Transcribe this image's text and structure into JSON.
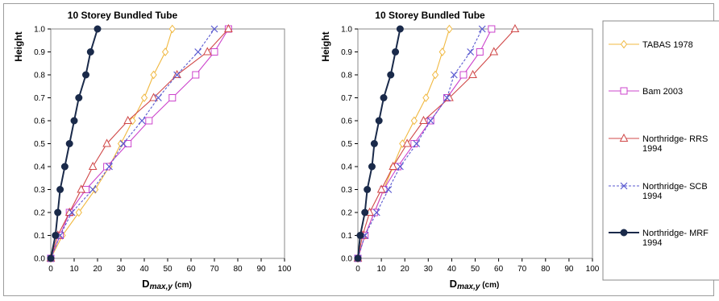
{
  "chart_data": [
    {
      "type": "line",
      "title": "10 Storey Bundled  Tube",
      "ylabel": "Height",
      "xlabel": {
        "main": "D",
        "sub": "max,y",
        "unit": " (cm)"
      },
      "xlim": [
        0,
        100
      ],
      "ylim": [
        0,
        1.0
      ],
      "xticks": [
        0,
        10,
        20,
        30,
        40,
        50,
        60,
        70,
        80,
        90,
        100
      ],
      "yticks": [
        0.0,
        0.1,
        0.2,
        0.3,
        0.4,
        0.5,
        0.6,
        0.7,
        0.8,
        0.9,
        1.0
      ],
      "ytick_labels": [
        "0.0",
        "0.1",
        "0.2",
        "0.3",
        "0.4",
        "0.5",
        "0.6",
        "0.7",
        "0.8",
        "0.9",
        "1.0"
      ],
      "grid": false,
      "series": [
        {
          "key": "tabas",
          "y": [
            0.0,
            0.1,
            0.2,
            0.3,
            0.4,
            0.5,
            0.6,
            0.7,
            0.8,
            0.9,
            1.0
          ],
          "x": [
            0,
            5,
            12,
            19,
            25,
            30,
            35,
            40,
            44,
            49,
            52
          ]
        },
        {
          "key": "bam",
          "y": [
            0.0,
            0.1,
            0.2,
            0.3,
            0.4,
            0.5,
            0.6,
            0.7,
            0.8,
            0.9,
            1.0
          ],
          "x": [
            0,
            4,
            8,
            15,
            24,
            33,
            42,
            52,
            62,
            70,
            76
          ]
        },
        {
          "key": "rrs",
          "y": [
            0.0,
            0.1,
            0.2,
            0.3,
            0.4,
            0.5,
            0.6,
            0.7,
            0.8,
            0.9,
            1.0
          ],
          "x": [
            0,
            3,
            8,
            13,
            18,
            24,
            33,
            44,
            54,
            67,
            76
          ]
        },
        {
          "key": "scbf",
          "y": [
            0.0,
            0.1,
            0.2,
            0.3,
            0.4,
            0.5,
            0.6,
            0.7,
            0.8,
            0.9,
            1.0
          ],
          "x": [
            0,
            4,
            9,
            18,
            25,
            31,
            39,
            46,
            54,
            63,
            70
          ]
        },
        {
          "key": "mrf",
          "y": [
            0.0,
            0.1,
            0.2,
            0.3,
            0.4,
            0.5,
            0.6,
            0.7,
            0.8,
            0.9,
            1.0
          ],
          "x": [
            0,
            2,
            3,
            4,
            6,
            8,
            10,
            12,
            15,
            17,
            20
          ]
        }
      ]
    },
    {
      "type": "line",
      "title": "10 Storey Bundled  Tube",
      "ylabel": "Height",
      "xlabel": {
        "main": "D",
        "sub": "max,y",
        "unit": " (cm)"
      },
      "xlim": [
        0,
        100
      ],
      "ylim": [
        0,
        1.0
      ],
      "xticks": [
        0,
        10,
        20,
        30,
        40,
        50,
        60,
        70,
        80,
        90,
        100
      ],
      "yticks": [
        0.0,
        0.1,
        0.2,
        0.3,
        0.4,
        0.5,
        0.6,
        0.7,
        0.8,
        0.9,
        1.0
      ],
      "ytick_labels": [
        "0.0",
        "0.1",
        "0.2",
        "0.3",
        "0.4",
        "0.5",
        "0.6",
        "0.7",
        "0.8",
        "0.9",
        "1.0"
      ],
      "grid": false,
      "series": [
        {
          "key": "tabas",
          "y": [
            0.0,
            0.1,
            0.2,
            0.3,
            0.4,
            0.5,
            0.6,
            0.7,
            0.8,
            0.9,
            1.0
          ],
          "x": [
            0,
            3,
            7,
            11,
            15,
            19,
            24,
            29,
            33,
            36,
            39
          ]
        },
        {
          "key": "bam",
          "y": [
            0.0,
            0.1,
            0.2,
            0.3,
            0.4,
            0.5,
            0.6,
            0.7,
            0.8,
            0.9,
            1.0
          ],
          "x": [
            0,
            3,
            7,
            11,
            17,
            24,
            31,
            38,
            45,
            52,
            57
          ]
        },
        {
          "key": "rrs",
          "y": [
            0.0,
            0.1,
            0.2,
            0.3,
            0.4,
            0.5,
            0.6,
            0.7,
            0.8,
            0.9,
            1.0
          ],
          "x": [
            0,
            2,
            5,
            10,
            15,
            21,
            28,
            39,
            49,
            58,
            67
          ]
        },
        {
          "key": "scbf",
          "y": [
            0.0,
            0.1,
            0.2,
            0.3,
            0.4,
            0.5,
            0.6,
            0.7,
            0.8,
            0.9,
            1.0
          ],
          "x": [
            0,
            3,
            8,
            13,
            18,
            25,
            31,
            38,
            41,
            48,
            53
          ]
        },
        {
          "key": "mrf",
          "y": [
            0.0,
            0.1,
            0.2,
            0.3,
            0.4,
            0.5,
            0.6,
            0.7,
            0.8,
            0.9,
            1.0
          ],
          "x": [
            0,
            1,
            3,
            4,
            6,
            7,
            9,
            11,
            14,
            16,
            18
          ]
        }
      ]
    }
  ],
  "legend": {
    "placement": "right",
    "items": [
      {
        "key": "tabas",
        "lines": [
          "TABAS 1978"
        ],
        "color": "#f0b840",
        "marker": "diamond",
        "dash": "solid"
      },
      {
        "key": "bam",
        "lines": [
          "Bam 2003"
        ],
        "color": "#cc44cc",
        "marker": "square",
        "dash": "solid"
      },
      {
        "key": "rrs",
        "lines": [
          "Northridge- RRS",
          "1994"
        ],
        "color": "#d04848",
        "marker": "triangle",
        "dash": "solid"
      },
      {
        "key": "scbf",
        "lines": [
          "Northridge- SCB",
          "1994"
        ],
        "color": "#5a5ad0",
        "marker": "x",
        "dash": "dashed"
      },
      {
        "key": "mrf",
        "lines": [
          "Northridge- MRF",
          "1994"
        ],
        "color": "#1a2a4a",
        "marker": "circle",
        "dash": "solid"
      }
    ]
  }
}
